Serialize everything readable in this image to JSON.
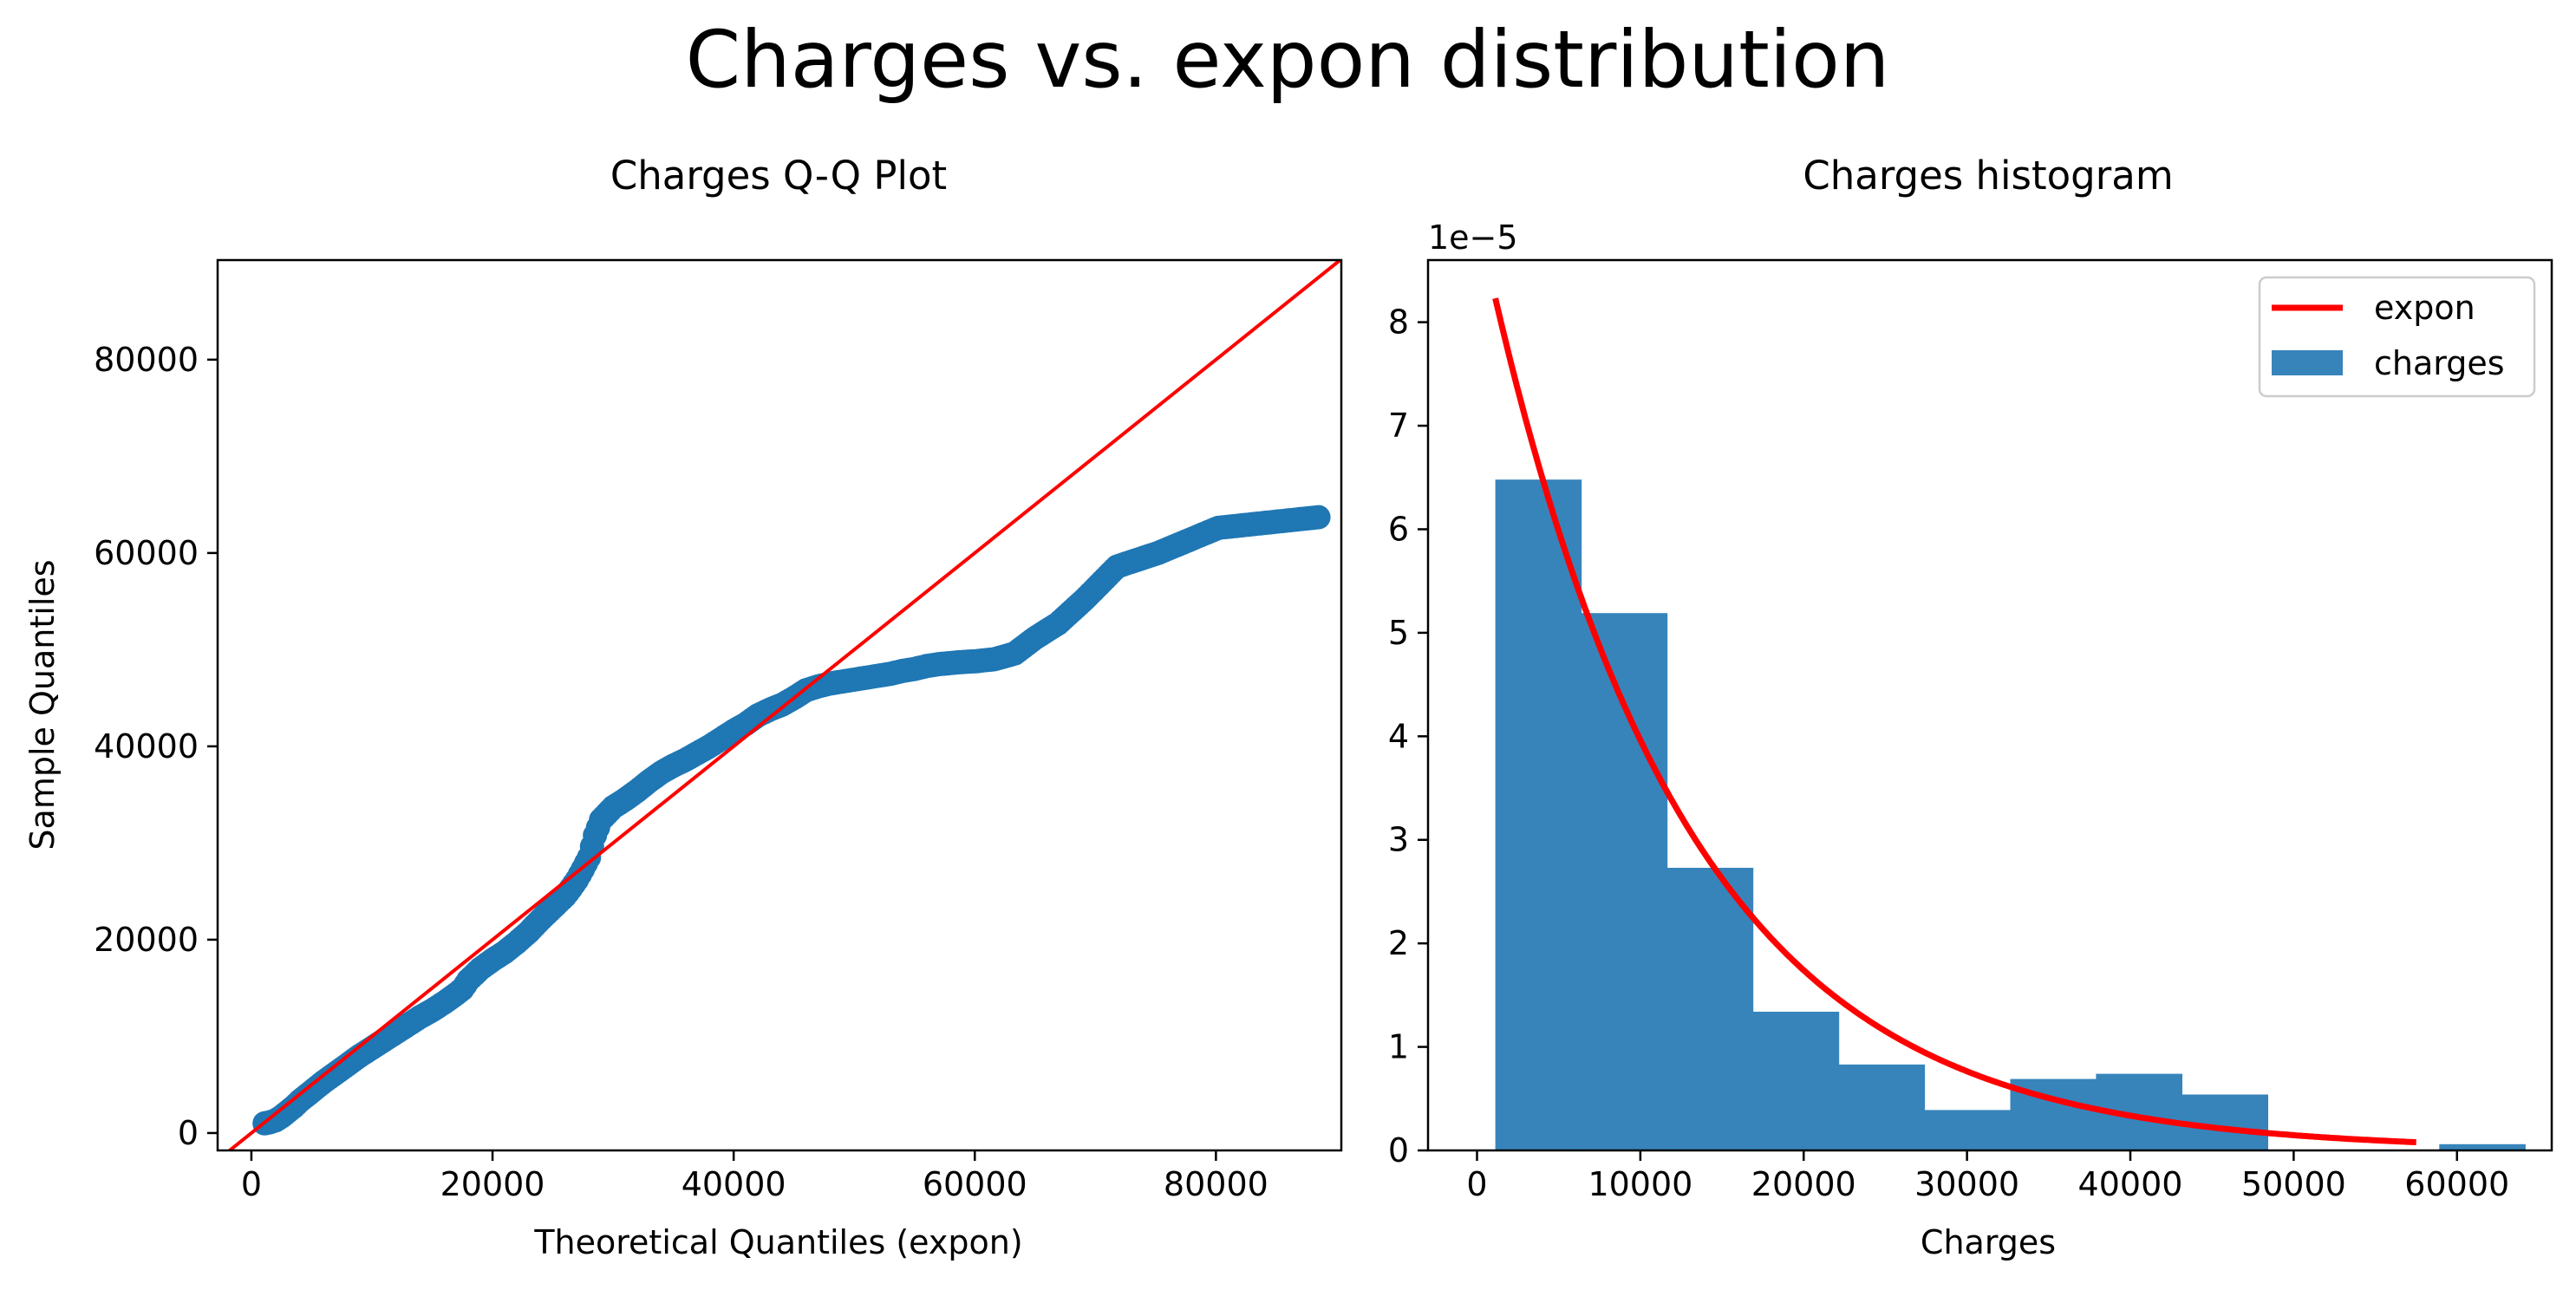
{
  "figure": {
    "title": "Charges vs. expon distribution"
  },
  "chart_data": [
    {
      "type": "scatter",
      "title": "Charges Q-Q Plot",
      "xlabel": "Theoretical Quantiles (expon)",
      "ylabel": "Sample Quantiles",
      "xlim": [
        -2800,
        90400
      ],
      "ylim": [
        -1800,
        90300
      ],
      "xticks": [
        0,
        20000,
        40000,
        60000,
        80000
      ],
      "yticks": [
        0,
        20000,
        40000,
        60000,
        80000
      ],
      "xtick_labels": [
        "0",
        "20000",
        "40000",
        "60000",
        "80000"
      ],
      "ytick_labels": [
        "0",
        "20000",
        "40000",
        "60000",
        "80000"
      ],
      "grid": false,
      "colors": {
        "points": "#1f77b4",
        "reference_line": "#ff0000"
      },
      "reference_line": {
        "x": [
          -2800,
          90400
        ],
        "y": [
          -2800,
          90400
        ]
      },
      "points": {
        "x": [
          88500,
          80200,
          75200,
          71800,
          69100,
          66900,
          65000,
          63300,
          61600,
          60800,
          60100,
          59400,
          58700,
          57900,
          57000,
          56000,
          55000,
          54000,
          53000,
          52000,
          51000,
          50000,
          49000,
          48000,
          47000,
          46000,
          45000,
          44000,
          43000,
          42000,
          41000,
          40000,
          39000,
          38000,
          37000,
          36000,
          35000,
          34000,
          33000,
          32000,
          31000,
          30000,
          29000,
          28500,
          28000,
          27500,
          27000,
          26500,
          26000,
          25000,
          24000,
          23000,
          22000,
          21000,
          20000,
          19000,
          18000,
          17500,
          17000,
          16000,
          15000,
          14000,
          13000,
          12000,
          11000,
          10000,
          9000,
          8000,
          7000,
          6000,
          5000,
          4000,
          3500,
          3000,
          2500,
          2000,
          1500,
          1100
        ],
        "y": [
          63700,
          62600,
          60000,
          58600,
          55200,
          52700,
          51200,
          49600,
          49000,
          48900,
          48800,
          48750,
          48700,
          48600,
          48500,
          48300,
          48000,
          47800,
          47500,
          47300,
          47100,
          46900,
          46700,
          46500,
          46200,
          45800,
          45000,
          44300,
          43800,
          43200,
          42300,
          41600,
          40800,
          40000,
          39300,
          38600,
          38000,
          37300,
          36400,
          35400,
          34500,
          33700,
          32400,
          30800,
          28500,
          27300,
          26200,
          25300,
          24500,
          23300,
          22100,
          20800,
          19700,
          18700,
          17900,
          17000,
          15800,
          14900,
          14400,
          13500,
          12700,
          12000,
          11200,
          10400,
          9600,
          8800,
          8000,
          7100,
          6200,
          5300,
          4300,
          3300,
          2700,
          2200,
          1700,
          1300,
          1100,
          1000
        ]
      }
    },
    {
      "type": "bar",
      "title": "Charges histogram",
      "xlabel": "Charges",
      "ylabel": "",
      "offset_text": "1e−5",
      "xlim": [
        -3000,
        65800
      ],
      "ylim": [
        0,
        8.6e-05
      ],
      "xticks": [
        0,
        10000,
        20000,
        30000,
        40000,
        50000,
        60000
      ],
      "yticks": [
        0,
        1e-05,
        2e-05,
        3e-05,
        4e-05,
        5e-05,
        6e-05,
        7e-05,
        8e-05
      ],
      "xtick_labels": [
        "0",
        "10000",
        "20000",
        "30000",
        "40000",
        "50000",
        "60000"
      ],
      "ytick_labels": [
        "0",
        "1",
        "2",
        "3",
        "4",
        "5",
        "6",
        "7",
        "8"
      ],
      "grid": false,
      "legend_position": "upper right",
      "colors": {
        "bars": "#3784bb",
        "curve": "#ff0000"
      },
      "legend": [
        {
          "label": "expon",
          "kind": "line",
          "color": "#ff0000"
        },
        {
          "label": "charges",
          "kind": "patch",
          "color": "#3784bb"
        }
      ],
      "bins": [
        1122,
        6376,
        11630,
        16884,
        22138,
        27392,
        32646,
        37900,
        43154,
        48408,
        53662,
        58916,
        64170
      ],
      "densities": [
        6.48e-05,
        5.19e-05,
        2.73e-05,
        1.34e-05,
        8.3e-06,
        3.9e-06,
        6.9e-06,
        7.4e-06,
        5.4e-06,
        0,
        0,
        6e-07
      ],
      "series": [
        {
          "name": "expon",
          "x": [
            1122,
            57500
          ],
          "loc": 1122,
          "scale": 12150
        }
      ]
    }
  ]
}
